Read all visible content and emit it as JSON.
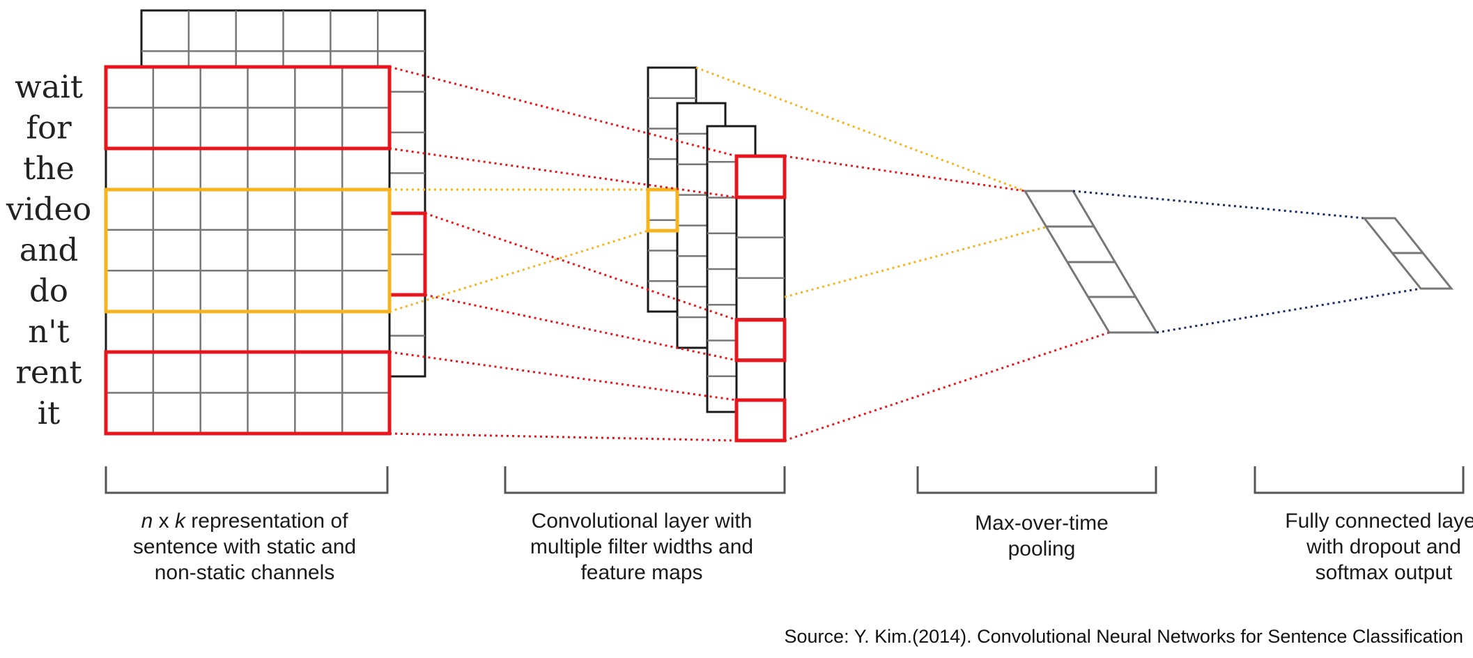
{
  "words": [
    "wait",
    "for",
    "the",
    "video",
    "and",
    "do",
    "n't",
    "rent",
    "it"
  ],
  "captions": {
    "input": {
      "line1_n": "n",
      "line1_x": " x ",
      "line1_k": "k",
      "line1_rest": " representation of",
      "line2": "sentence with static and",
      "line3": "non-static channels"
    },
    "conv": {
      "line1": "Convolutional layer with",
      "line2": "multiple filter widths and",
      "line3": "feature maps"
    },
    "pool": {
      "line1": "Max-over-time",
      "line2": "pooling"
    },
    "fc": {
      "line1": "Fully connected layer",
      "line2": "with dropout and",
      "line3": "softmax output"
    }
  },
  "source": "Source: Y. Kim.(2014). Convolutional Neural Networks for Sentence Classification",
  "colors": {
    "highlight_red": "#e8161c",
    "highlight_yellow": "#f5b41e",
    "pool_connector": "#1a2a5e",
    "grid": "#777777"
  }
}
